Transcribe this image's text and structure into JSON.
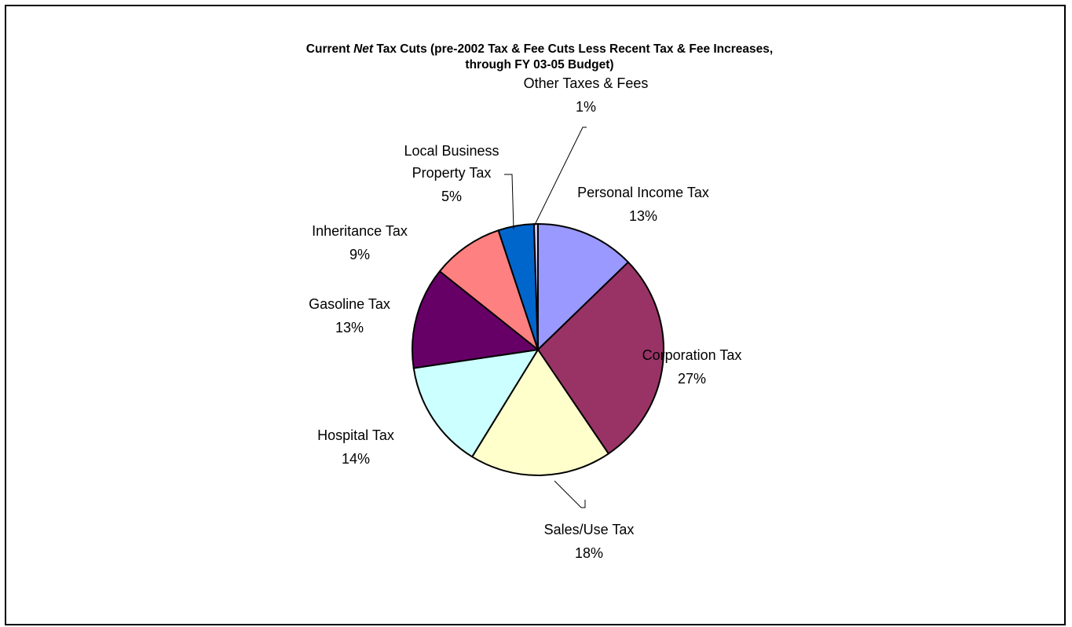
{
  "chart_data": {
    "type": "pie",
    "title": {
      "prefix": "Current ",
      "emphasis": "Net",
      "line1_rest": " Tax Cuts (pre-2002 Tax & Fee Cuts Less Recent Tax & Fee Increases,",
      "line2": "through FY 03-05 Budget)"
    },
    "slices": [
      {
        "name": "Personal Income Tax",
        "label": "13%",
        "value": 12.5,
        "color": "#9999FF"
      },
      {
        "name": "Corporation Tax",
        "label": "27%",
        "value": 27.2,
        "color": "#993366"
      },
      {
        "name": "Sales/Use Tax",
        "label": "18%",
        "value": 17.9,
        "color": "#FFFFCC"
      },
      {
        "name": "Hospital Tax",
        "label": "14%",
        "value": 13.6,
        "color": "#CCFFFF"
      },
      {
        "name": "Gasoline Tax",
        "label": "13%",
        "value": 12.8,
        "color": "#660066"
      },
      {
        "name": "Inheritance Tax",
        "label": "9%",
        "value": 9.0,
        "color": "#FF8080"
      },
      {
        "name": "Local Business Property Tax",
        "name_lines": [
          "Local Business",
          "Property Tax"
        ],
        "label": "5%",
        "value": 4.5,
        "color": "#0066CC"
      },
      {
        "name": "Other Taxes & Fees",
        "label": "1%",
        "value": 0.5,
        "color": "#CCCCFF"
      }
    ]
  }
}
